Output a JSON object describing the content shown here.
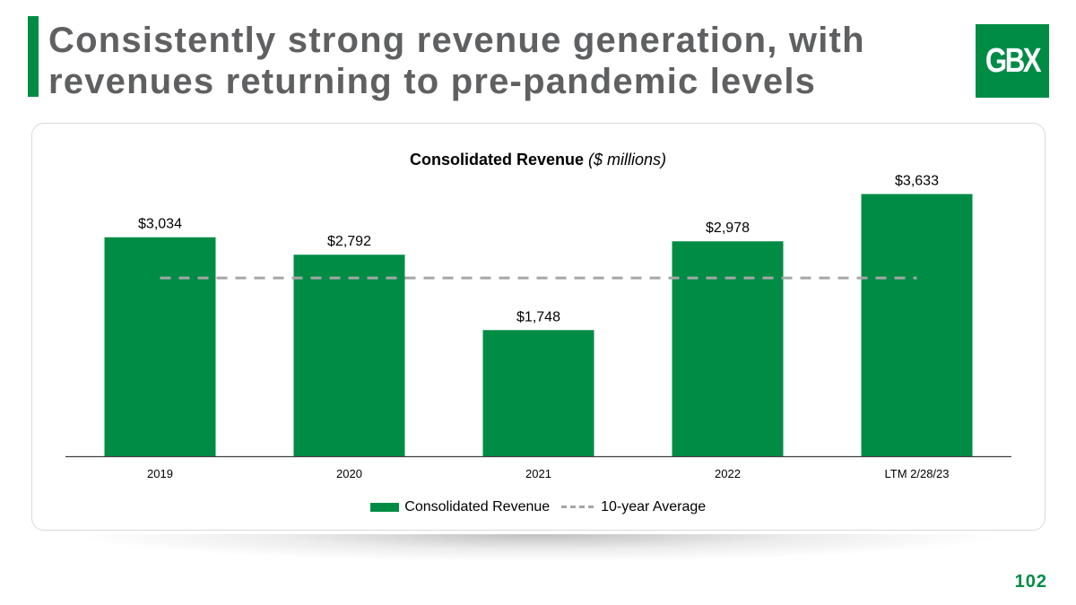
{
  "slide": {
    "title_line1": "Consistently strong revenue generation, with",
    "title_line2": "revenues returning to pre-pandemic levels",
    "logo_text": "GBX",
    "page_number": "102"
  },
  "colors": {
    "brand_green": "#008c45",
    "average_line": "#a6a6a6",
    "title_gray": "#5f6062"
  },
  "chart_data": {
    "type": "bar",
    "title": "Consolidated Revenue",
    "title_suffix": "($ millions)",
    "categories": [
      "2019",
      "2020",
      "2021",
      "2022",
      "LTM 2/28/23"
    ],
    "series": [
      {
        "name": "Consolidated Revenue",
        "values": [
          3034,
          2792,
          1748,
          2978,
          3633
        ],
        "labels": [
          "$3,034",
          "$2,792",
          "$1,748",
          "$2,978",
          "$3,633"
        ]
      }
    ],
    "average": {
      "name": "10-year Average",
      "value": 2470
    },
    "ylim": [
      0,
      3900
    ],
    "xlabel": "",
    "ylabel": "",
    "legend": [
      "Consolidated Revenue",
      "10-year Average"
    ]
  }
}
